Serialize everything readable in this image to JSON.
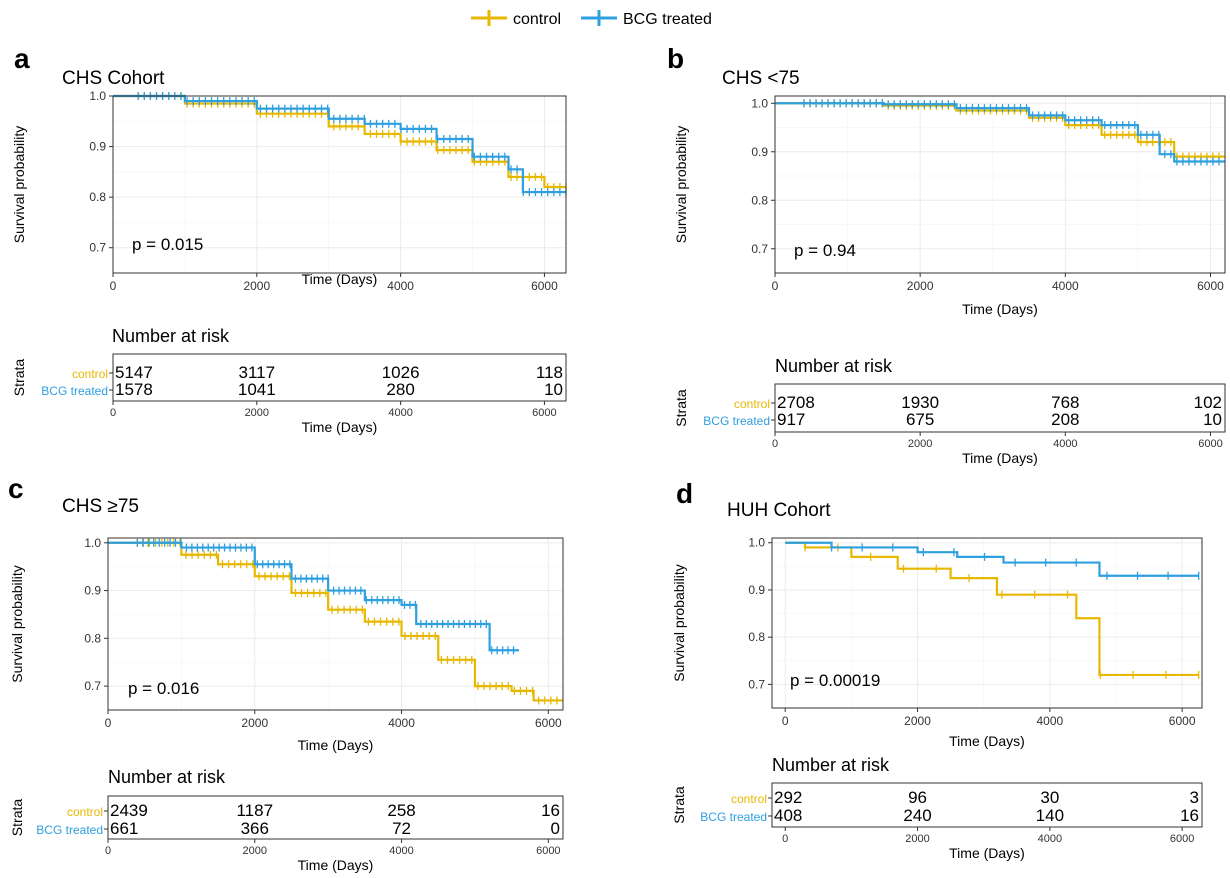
{
  "legend": {
    "entries": [
      {
        "label": "control",
        "color": "#E7B800"
      },
      {
        "label": "BCG treated",
        "color": "#2E9FDF"
      }
    ]
  },
  "chart_data": [
    {
      "type": "line",
      "panel": "a",
      "title": "CHS Cohort",
      "xlabel": "Time (Days)",
      "ylabel": "Survival probability",
      "xlim": [
        0,
        6300
      ],
      "ylim": [
        0.65,
        1.0
      ],
      "xticks": [
        0,
        2000,
        4000,
        6000
      ],
      "yticks": [
        0.7,
        0.8,
        0.9,
        1.0
      ],
      "ytick_labels": [
        "0.7",
        "0.8",
        "0.9",
        "1.0"
      ],
      "pvalue": "p = 0.015",
      "series": [
        {
          "name": "control",
          "color": "#E7B800",
          "x": [
            0,
            350,
            1000,
            2000,
            3000,
            3500,
            4000,
            4500,
            5000,
            5500,
            6000,
            6300
          ],
          "y": [
            1.0,
            1.0,
            0.985,
            0.965,
            0.94,
            0.925,
            0.91,
            0.893,
            0.87,
            0.84,
            0.82,
            0.82
          ]
        },
        {
          "name": "BCG treated",
          "color": "#2E9FDF",
          "x": [
            0,
            350,
            1000,
            2000,
            3000,
            3500,
            4000,
            4500,
            5000,
            5500,
            5700,
            6300
          ],
          "y": [
            1.0,
            1.0,
            0.99,
            0.975,
            0.955,
            0.945,
            0.935,
            0.915,
            0.88,
            0.855,
            0.81,
            0.81
          ]
        }
      ],
      "risk_table": {
        "title": "Number at risk",
        "ylabel": "Strata",
        "xlabel": "Time (Days)",
        "times": [
          0,
          2000,
          4000,
          6000
        ],
        "rows": [
          {
            "name": "control",
            "color": "#E7B800",
            "values": [
              "5147",
              "3117",
              "1026",
              "118"
            ]
          },
          {
            "name": "BCG treated",
            "color": "#2E9FDF",
            "values": [
              "1578",
              "1041",
              "280",
              "10"
            ]
          }
        ]
      }
    },
    {
      "type": "line",
      "panel": "b",
      "title": "CHS <75",
      "xlabel": "Time (Days)",
      "ylabel": "Survival probability",
      "xlim": [
        0,
        6200
      ],
      "ylim": [
        0.65,
        1.015
      ],
      "xticks": [
        0,
        2000,
        4000,
        6000
      ],
      "yticks": [
        0.7,
        0.8,
        0.9,
        1.0
      ],
      "ytick_labels": [
        "0.7",
        "0.8",
        "0.9",
        "1.0"
      ],
      "pvalue": "p = 0.94",
      "series": [
        {
          "name": "control",
          "color": "#E7B800",
          "x": [
            0,
            400,
            1500,
            2500,
            3500,
            4000,
            4500,
            5000,
            5500,
            6200
          ],
          "y": [
            1.0,
            1.0,
            0.995,
            0.985,
            0.97,
            0.955,
            0.935,
            0.92,
            0.89,
            0.89
          ]
        },
        {
          "name": "BCG treated",
          "color": "#2E9FDF",
          "x": [
            0,
            400,
            1500,
            2500,
            3500,
            4000,
            4500,
            5000,
            5300,
            5500,
            6200
          ],
          "y": [
            1.0,
            1.0,
            0.998,
            0.99,
            0.975,
            0.965,
            0.955,
            0.935,
            0.895,
            0.88,
            0.88
          ]
        }
      ],
      "risk_table": {
        "title": "Number at risk",
        "ylabel": "Strata",
        "xlabel": "Time (Days)",
        "times": [
          0,
          2000,
          4000,
          6000
        ],
        "rows": [
          {
            "name": "control",
            "color": "#E7B800",
            "values": [
              "2708",
              "1930",
              "768",
              "102"
            ]
          },
          {
            "name": "BCG treated",
            "color": "#2E9FDF",
            "values": [
              "917",
              "675",
              "208",
              "10"
            ]
          }
        ]
      }
    },
    {
      "type": "line",
      "panel": "c",
      "title": "CHS ≥75",
      "xlabel": "Time (Days)",
      "ylabel": "Survival probability",
      "xlim": [
        0,
        6200
      ],
      "ylim": [
        0.65,
        1.01
      ],
      "xticks": [
        0,
        2000,
        4000,
        6000
      ],
      "yticks": [
        0.7,
        0.8,
        0.9,
        1.0
      ],
      "ytick_labels": [
        "0.7",
        "0.8",
        "0.9",
        "1.0"
      ],
      "pvalue": "p = 0.016",
      "series": [
        {
          "name": "control",
          "color": "#E7B800",
          "x": [
            0,
            400,
            1000,
            1500,
            2000,
            2500,
            3000,
            3500,
            4000,
            4500,
            5000,
            5500,
            5800,
            6200
          ],
          "y": [
            1.0,
            1.0,
            0.975,
            0.955,
            0.93,
            0.895,
            0.86,
            0.835,
            0.805,
            0.755,
            0.7,
            0.69,
            0.67,
            0.67
          ]
        },
        {
          "name": "BCG treated",
          "color": "#2E9FDF",
          "x": [
            0,
            400,
            1000,
            2000,
            2500,
            3000,
            3500,
            4000,
            4200,
            5100,
            5200,
            5600
          ],
          "y": [
            1.0,
            1.0,
            0.99,
            0.955,
            0.925,
            0.9,
            0.88,
            0.87,
            0.83,
            0.83,
            0.775,
            0.775
          ]
        }
      ],
      "risk_table": {
        "title": "Number at risk",
        "ylabel": "Strata",
        "xlabel": "Time (Days)",
        "times": [
          0,
          2000,
          4000,
          6000
        ],
        "rows": [
          {
            "name": "control",
            "color": "#E7B800",
            "values": [
              "2439",
              "1187",
              "258",
              "16"
            ]
          },
          {
            "name": "BCG treated",
            "color": "#2E9FDF",
            "values": [
              "661",
              "366",
              "72",
              "0"
            ]
          }
        ]
      }
    },
    {
      "type": "line",
      "panel": "d",
      "title": "HUH Cohort",
      "xlabel": "Time (Days)",
      "ylabel": "Survival probability",
      "xlim": [
        -200,
        6300
      ],
      "ylim": [
        0.65,
        1.01
      ],
      "xticks": [
        0,
        2000,
        4000,
        6000
      ],
      "yticks": [
        0.7,
        0.8,
        0.9,
        1.0
      ],
      "ytick_labels": [
        "0.7",
        "0.8",
        "0.9",
        "1.0"
      ],
      "pvalue": "p = 0.00019",
      "series": [
        {
          "name": "control",
          "color": "#E7B800",
          "x": [
            0,
            300,
            1000,
            1700,
            2500,
            3200,
            4400,
            4750,
            6250
          ],
          "y": [
            1.0,
            0.99,
            0.97,
            0.945,
            0.925,
            0.89,
            0.84,
            0.72,
            0.72
          ]
        },
        {
          "name": "BCG treated",
          "color": "#2E9FDF",
          "x": [
            0,
            700,
            2000,
            2600,
            3300,
            4750,
            6250
          ],
          "y": [
            1.0,
            0.99,
            0.98,
            0.97,
            0.958,
            0.93,
            0.93
          ]
        }
      ],
      "risk_table": {
        "title": "Number at risk",
        "ylabel": "Strata",
        "xlabel": "Time (Days)",
        "times": [
          0,
          2000,
          4000,
          6000
        ],
        "rows": [
          {
            "name": "control",
            "color": "#E7B800",
            "values": [
              "292",
              "96",
              "30",
              "3"
            ]
          },
          {
            "name": "BCG treated",
            "color": "#2E9FDF",
            "values": [
              "408",
              "240",
              "140",
              "16"
            ]
          }
        ]
      }
    }
  ]
}
